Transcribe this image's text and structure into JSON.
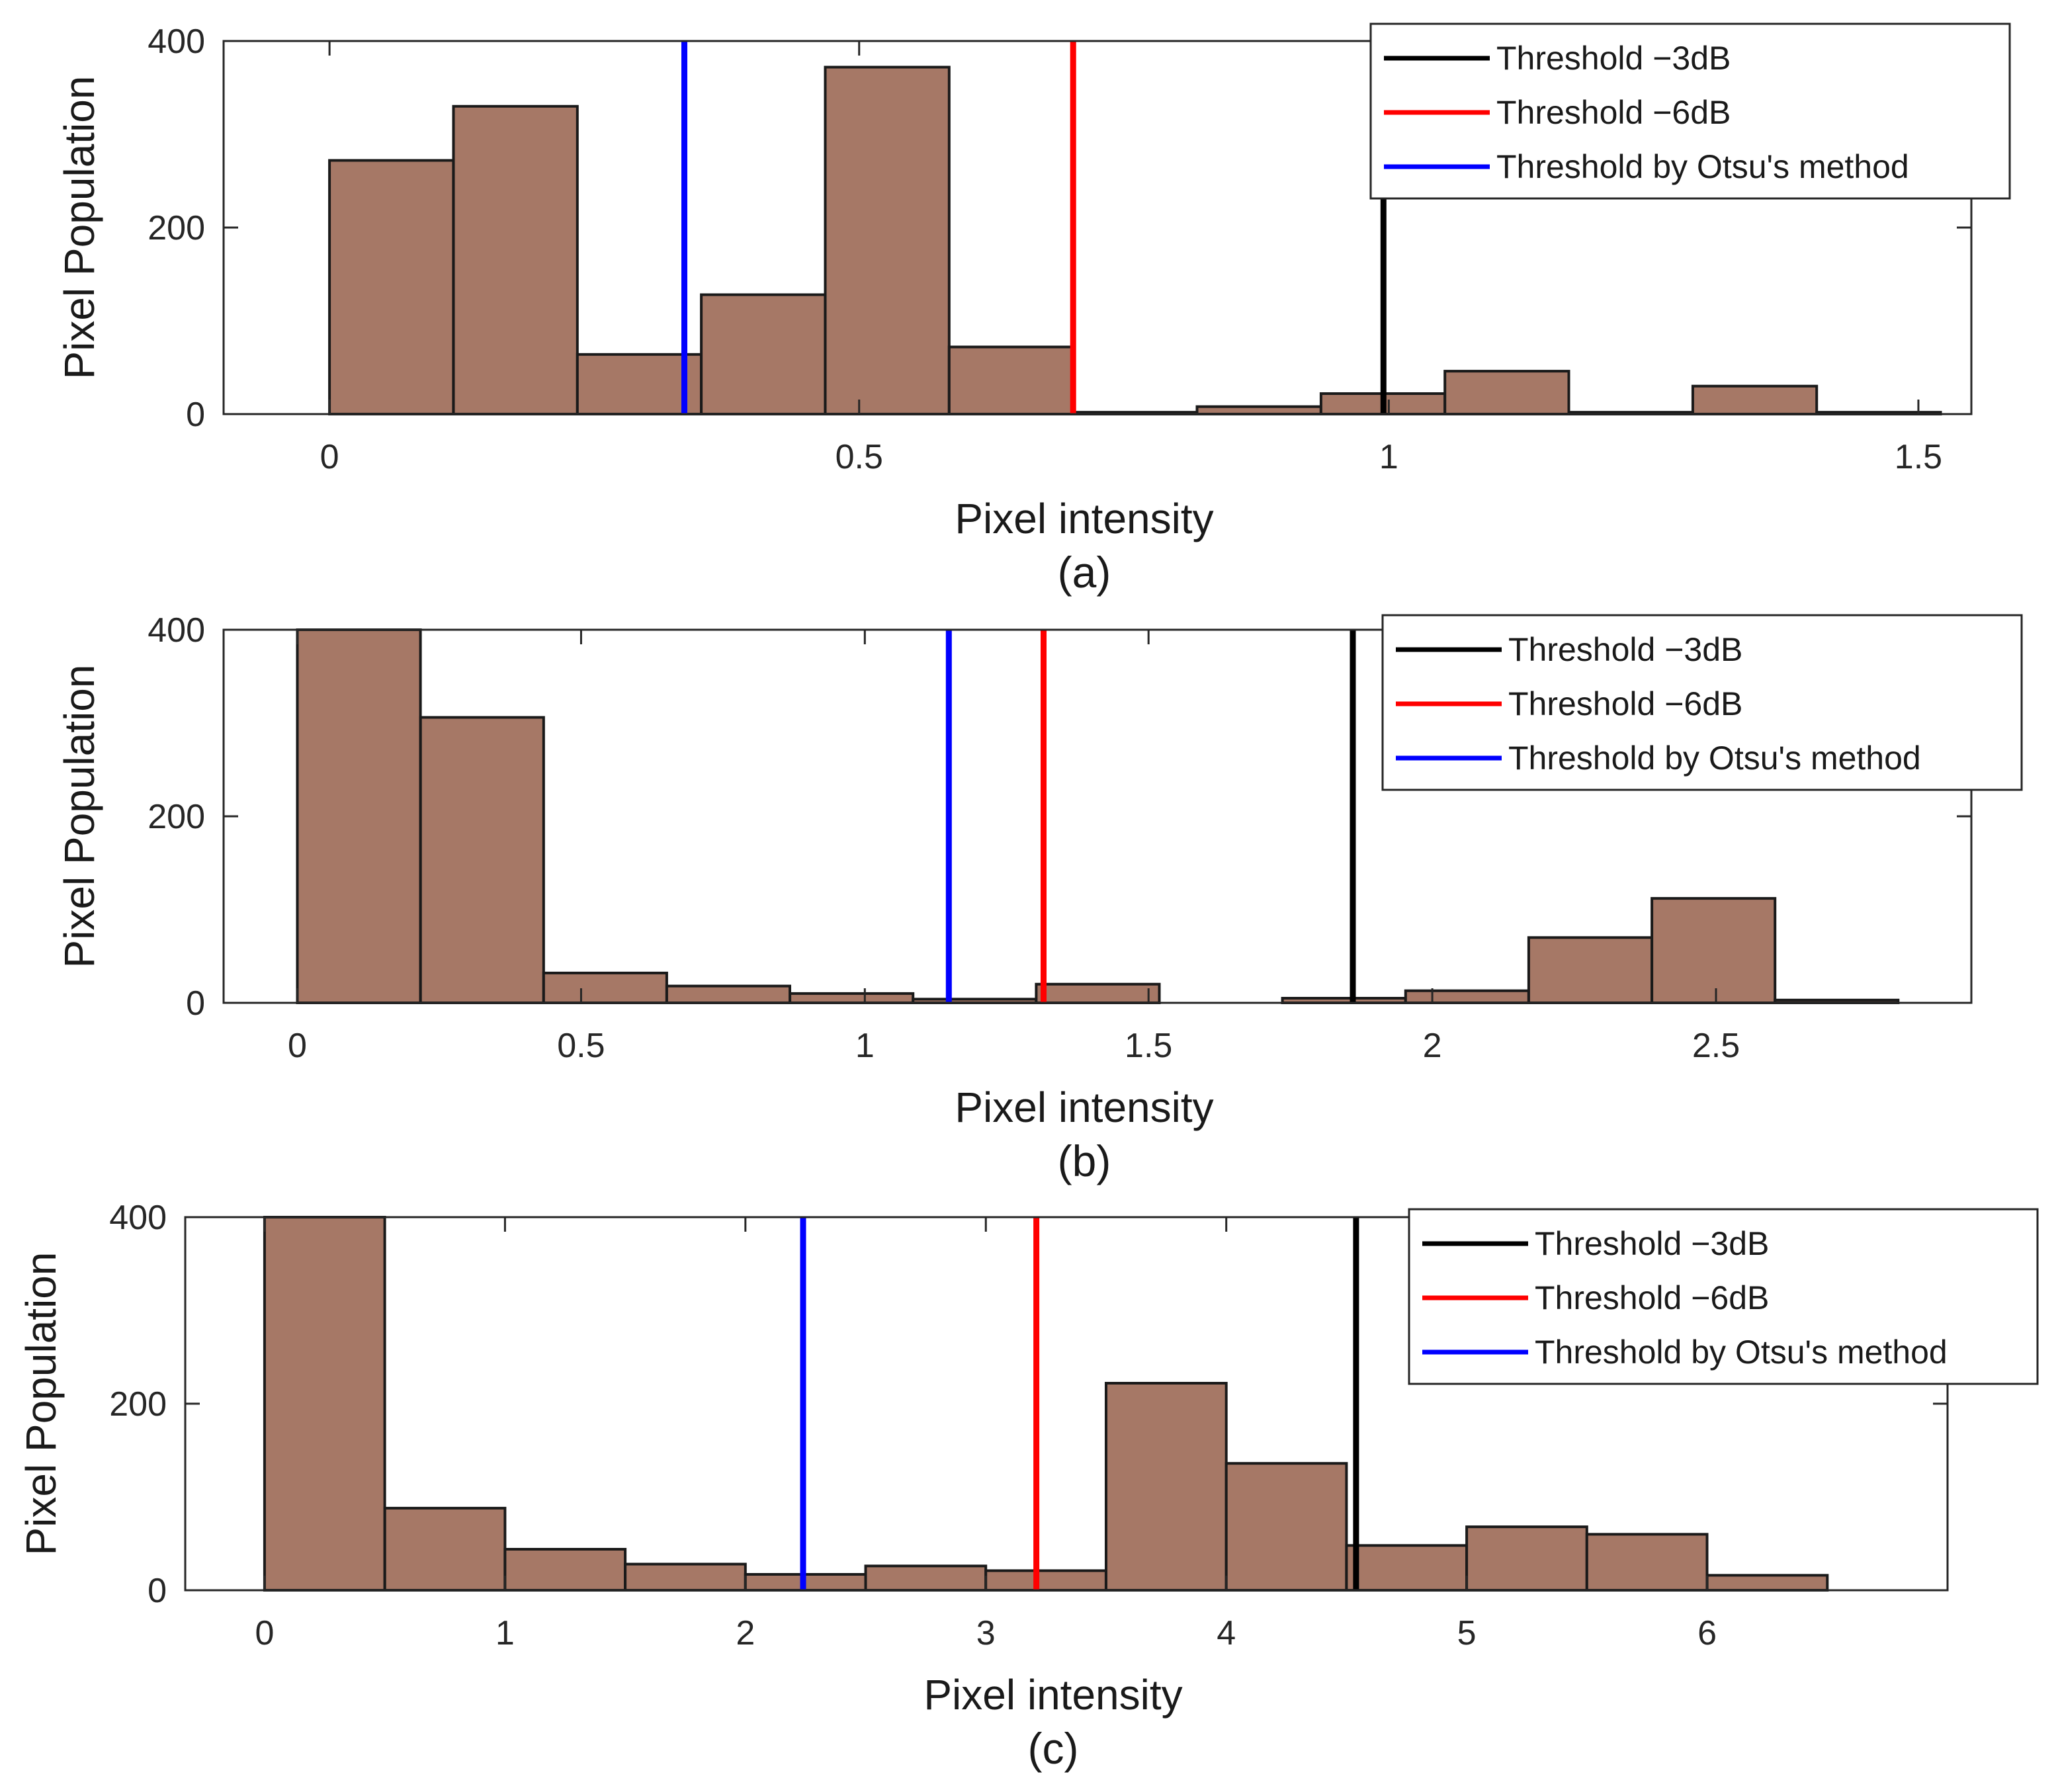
{
  "colors": {
    "bar_fill": "#a67866",
    "bar_edge": "#1a1a1a",
    "axis": "#262626",
    "threshold_3db": "#000000",
    "threshold_6db": "#ff0000",
    "threshold_otsu": "#0000ff",
    "legend_border": "#262626"
  },
  "chart_data": [
    {
      "type": "bar",
      "panel_label": "(a)",
      "xlabel": "Pixel intensity",
      "ylabel": "Pixel Population",
      "xlim": [
        -0.1,
        1.55
      ],
      "ylim": [
        0,
        400
      ],
      "xticks": [
        0,
        0.5,
        1,
        1.5
      ],
      "xtick_labels": [
        "0",
        "0.5",
        "1",
        "1.5"
      ],
      "yticks": [
        0,
        200,
        400
      ],
      "ytick_labels": [
        "0",
        "200",
        "400"
      ],
      "bin_width": 0.117,
      "bin_starts": [
        0,
        0.117,
        0.234,
        0.351,
        0.468,
        0.585,
        0.702,
        0.819,
        0.936,
        1.053,
        1.17,
        1.287,
        1.404
      ],
      "values": [
        272,
        330,
        64,
        128,
        372,
        72,
        2,
        8,
        22,
        46,
        2,
        30,
        2
      ],
      "thresholds": [
        {
          "name": "Threshold −3dB",
          "x": 0.995,
          "color": "#000000"
        },
        {
          "name": "Threshold −6dB",
          "x": 0.702,
          "color": "#ff0000"
        },
        {
          "name": "Threshold by Otsu's method",
          "x": 0.335,
          "color": "#0000ff"
        }
      ],
      "legend": {
        "position": "top-right",
        "entries": [
          "Threshold −3dB",
          "Threshold −6dB",
          "Threshold by Otsu's method"
        ]
      }
    },
    {
      "type": "bar",
      "panel_label": "(b)",
      "xlabel": "Pixel intensity",
      "ylabel": "Pixel Population",
      "xlim": [
        -0.13,
        2.95
      ],
      "ylim": [
        0,
        400
      ],
      "xticks": [
        0,
        0.5,
        1,
        1.5,
        2,
        2.5
      ],
      "xtick_labels": [
        "0",
        "0.5",
        "1",
        "1.5",
        "2",
        "2.5"
      ],
      "yticks": [
        0,
        200,
        400
      ],
      "ytick_labels": [
        "0",
        "200",
        "400"
      ],
      "bin_width": 0.217,
      "bin_starts": [
        0,
        0.217,
        0.434,
        0.651,
        0.868,
        1.085,
        1.302,
        1.519,
        1.736,
        1.953,
        2.17,
        2.387,
        2.604
      ],
      "values": [
        400,
        306,
        32,
        18,
        10,
        4,
        20,
        0,
        5,
        13,
        70,
        112,
        3
      ],
      "thresholds": [
        {
          "name": "Threshold −3dB",
          "x": 1.86,
          "color": "#000000"
        },
        {
          "name": "Threshold −6dB",
          "x": 1.315,
          "color": "#ff0000"
        },
        {
          "name": "Threshold by Otsu's method",
          "x": 1.148,
          "color": "#0000ff"
        }
      ],
      "legend": {
        "position": "top-right",
        "entries": [
          "Threshold −3dB",
          "Threshold −6dB",
          "Threshold by Otsu's method"
        ]
      }
    },
    {
      "type": "bar",
      "panel_label": "(c)",
      "xlabel": "Pixel intensity",
      "ylabel": "Pixel Population",
      "xlim": [
        -0.33,
        7.0
      ],
      "ylim": [
        0,
        400
      ],
      "xticks": [
        0,
        1,
        2,
        3,
        4,
        5,
        6
      ],
      "xtick_labels": [
        "0",
        "1",
        "2",
        "3",
        "4",
        "5",
        "6"
      ],
      "yticks": [
        0,
        200,
        400
      ],
      "ytick_labels": [
        "0",
        "200",
        "400"
      ],
      "bin_width": 0.5,
      "bin_starts": [
        0,
        0.5,
        1,
        1.5,
        2,
        2.5,
        3,
        3.5,
        4,
        4.5,
        5,
        5.5,
        6
      ],
      "values": [
        400,
        88,
        44,
        28,
        17,
        26,
        21,
        222,
        136,
        48,
        68,
        60,
        16
      ],
      "thresholds": [
        {
          "name": "Threshold −3dB",
          "x": 4.54,
          "color": "#000000"
        },
        {
          "name": "Threshold −6dB",
          "x": 3.21,
          "color": "#ff0000"
        },
        {
          "name": "Threshold by Otsu's method",
          "x": 2.24,
          "color": "#0000ff"
        }
      ],
      "legend": {
        "position": "top-right",
        "entries": [
          "Threshold −3dB",
          "Threshold −6dB",
          "Threshold by Otsu's method"
        ]
      }
    }
  ]
}
